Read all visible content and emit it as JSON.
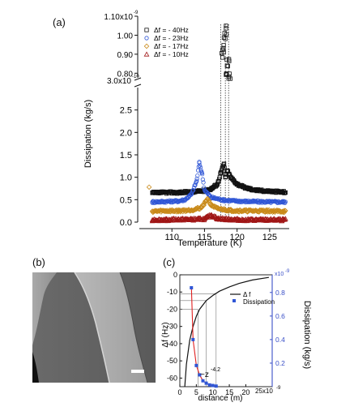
{
  "panels": {
    "a": "(a)",
    "b": "(b)",
    "c": "(c)"
  },
  "colors": {
    "black": "#111111",
    "blue": "#2f56d6",
    "orange": "#c98a1a",
    "red": "#a01616",
    "axis_c_right": "#3b50c8",
    "fit_line": "#e02020"
  },
  "chart_data": [
    {
      "type": "scatter",
      "panel": "(a)",
      "xlabel": "Temperature (K)",
      "ylabel": "Dissipation (kg/s)",
      "xlim": [
        105,
        128
      ],
      "x_ticks": [
        "110",
        "115",
        "120",
        "125"
      ],
      "broken_axis": true,
      "upper_ylim": [
        7.8e-10,
        1.1e-09
      ],
      "upper_tick_labels": [
        "1.10x10",
        "-9",
        "1.00",
        "0.90",
        "0.80",
        "3.0x10",
        "-10"
      ],
      "upper_tick_values": [
        1.1e-09,
        1e-09,
        9e-10,
        8e-10
      ],
      "lower_ylim": [
        0,
        3e-10
      ],
      "lower_tick_labels": [
        "0.0",
        "0.5",
        "1.0",
        "1.5",
        "2.0",
        "2.5"
      ],
      "lower_tick_values": [
        0.0,
        5e-11,
        1e-10,
        1.5e-10,
        2e-10,
        2.5e-10
      ],
      "legend_position": "top-left",
      "series": [
        {
          "name": "Δf = - 40Hz",
          "marker": "square",
          "color": "#111111",
          "points": [
            [
              107,
              0.65
            ],
            [
              109,
              0.66
            ],
            [
              111,
              0.66
            ],
            [
              113,
              0.67
            ],
            [
              115,
              0.7
            ],
            [
              116,
              0.74
            ],
            [
              117,
              0.85
            ],
            [
              117.5,
              1.1
            ],
            [
              118,
              1.3
            ],
            [
              118.2,
              1.0
            ],
            [
              118.5,
              1.15
            ],
            [
              119,
              1.0
            ],
            [
              120,
              0.85
            ],
            [
              121,
              0.78
            ],
            [
              122,
              0.74
            ],
            [
              123,
              0.71
            ],
            [
              125,
              0.69
            ],
            [
              127,
              0.67
            ]
          ],
          "peak_points": [
            [
              117.8,
              9e-10
            ],
            [
              118.0,
              9.6e-10
            ],
            [
              118.2,
              1.02e-09
            ],
            [
              118.4,
              8.2e-10
            ],
            [
              118.6,
              8.6e-10
            ],
            [
              118.8,
              8e-10
            ]
          ]
        },
        {
          "name": "Δf = - 23Hz",
          "marker": "circle",
          "color": "#2f56d6",
          "points": [
            [
              107,
              0.45
            ],
            [
              109,
              0.46
            ],
            [
              111,
              0.47
            ],
            [
              112,
              0.5
            ],
            [
              113,
              0.62
            ],
            [
              113.8,
              0.92
            ],
            [
              114.2,
              1.32
            ],
            [
              114.6,
              1.1
            ],
            [
              115,
              0.72
            ],
            [
              116,
              0.55
            ],
            [
              118,
              0.49
            ],
            [
              120,
              0.47
            ],
            [
              122,
              0.46
            ],
            [
              125,
              0.45
            ],
            [
              127,
              0.45
            ]
          ]
        },
        {
          "name": "Δf = - 17Hz",
          "marker": "diamond",
          "color": "#c98a1a",
          "points": [
            [
              106.5,
              0.78
            ],
            [
              107,
              0.24
            ],
            [
              109,
              0.25
            ],
            [
              111,
              0.25
            ],
            [
              113,
              0.27
            ],
            [
              114.5,
              0.32
            ],
            [
              115.5,
              0.52
            ],
            [
              116,
              0.38
            ],
            [
              117,
              0.3
            ],
            [
              119,
              0.26
            ],
            [
              121,
              0.25
            ],
            [
              124,
              0.25
            ],
            [
              127,
              0.24
            ]
          ]
        },
        {
          "name": "Δf = - 10Hz",
          "marker": "triangle",
          "color": "#a01616",
          "points": [
            [
              107,
              0.05
            ],
            [
              109,
              0.05
            ],
            [
              111,
              0.06
            ],
            [
              113,
              0.06
            ],
            [
              115,
              0.07
            ],
            [
              116,
              0.16
            ],
            [
              117,
              0.08
            ],
            [
              119,
              0.06
            ],
            [
              121,
              0.05
            ],
            [
              124,
              0.05
            ],
            [
              127,
              0.05
            ]
          ]
        }
      ]
    },
    {
      "type": "line",
      "panel": "(c)",
      "xlabel": "distance (m)",
      "x_exponent": "25x10",
      "x_exponent_power": "-9",
      "xlim": [
        0,
        2.8e-08
      ],
      "x_ticks": [
        "0",
        "5",
        "10",
        "15",
        "20"
      ],
      "ylabel": "Δf (Hz)",
      "ylim": [
        -65,
        0
      ],
      "y_ticks": [
        "0",
        "-10",
        "-20",
        "-30",
        "-40",
        "-50",
        "-60"
      ],
      "y2label": "Dissipation (kg/s)",
      "y2_exponent": "x10",
      "y2_exponent_power": "-9",
      "y2lim": [
        0,
        9.5e-10
      ],
      "y2_ticks": [
        "0.8",
        "0.6",
        "0.4",
        "0.2"
      ],
      "legend_position": "top-right",
      "annotation": "~z",
      "annotation_power": "-4.2",
      "series": [
        {
          "name": "Δ f",
          "color": "#111111",
          "points": [
            [
              1.5e-09,
              -65
            ],
            [
              2e-09,
              -52
            ],
            [
              3e-09,
              -38
            ],
            [
              4e-09,
              -30
            ],
            [
              5e-09,
              -24
            ],
            [
              6e-09,
              -20
            ],
            [
              8e-09,
              -15
            ],
            [
              1e-08,
              -12
            ],
            [
              1.2e-08,
              -9.5
            ],
            [
              1.5e-08,
              -7
            ],
            [
              1.8e-08,
              -5
            ],
            [
              2.2e-08,
              -3
            ],
            [
              2.7e-08,
              -1.5
            ]
          ]
        },
        {
          "name": "Dissipation",
          "color": "#2f56d6",
          "points": [
            [
              3.5e-09,
              8.4e-10
            ],
            [
              4e-09,
              4e-10
            ],
            [
              5e-09,
              1.8e-10
            ],
            [
              6e-09,
              1e-10
            ],
            [
              7e-09,
              5e-11
            ],
            [
              8e-09,
              3e-11
            ],
            [
              9e-09,
              1.5e-11
            ],
            [
              1e-08,
              1e-11
            ],
            [
              1.1e-08,
              5e-12
            ]
          ]
        }
      ]
    }
  ]
}
